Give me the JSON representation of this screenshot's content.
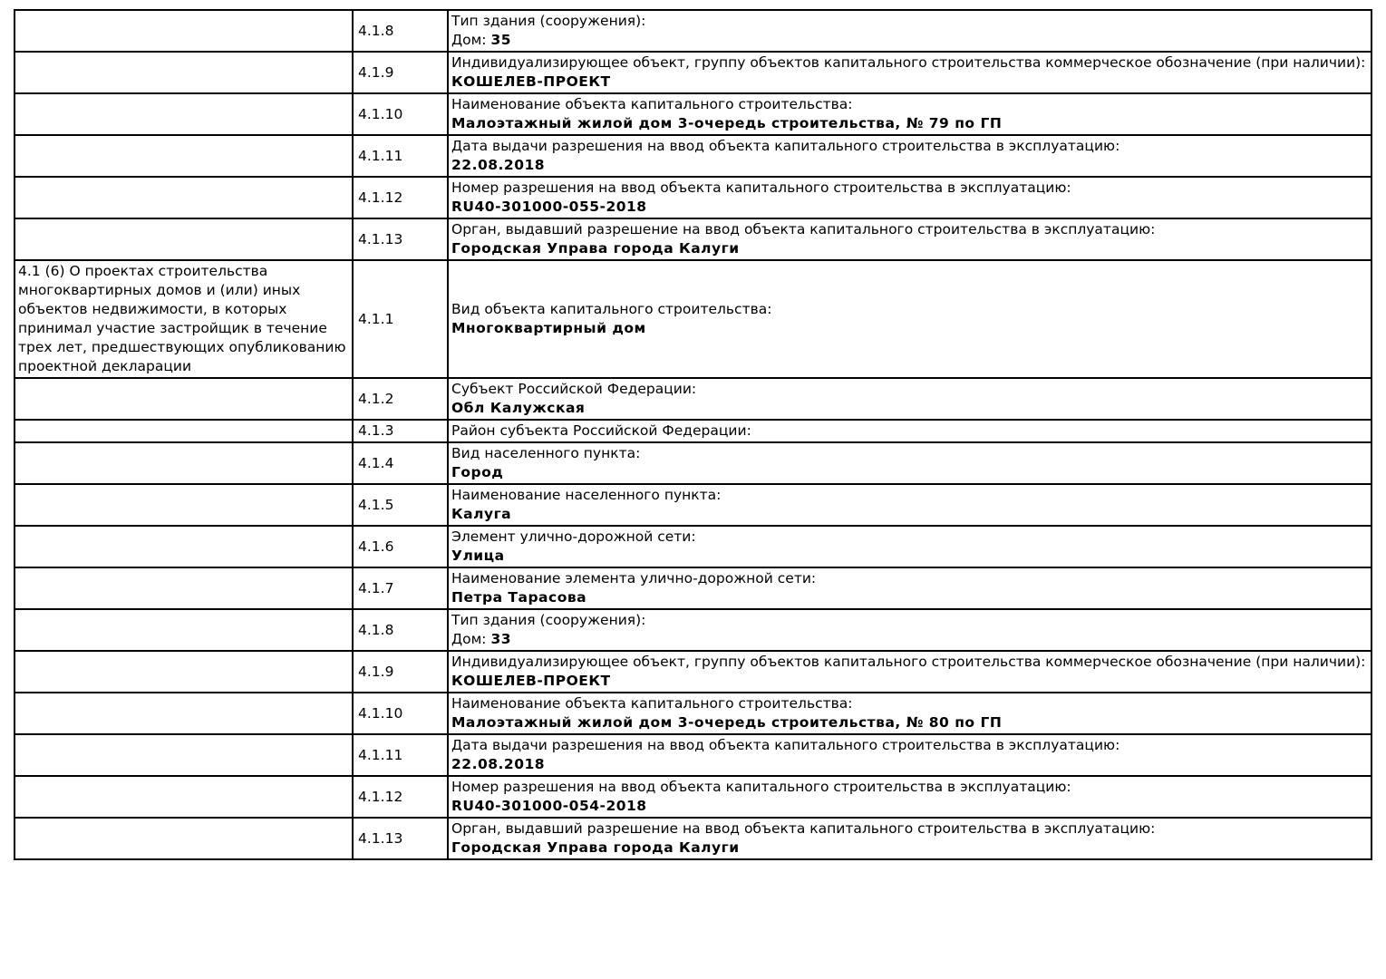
{
  "page": {
    "background_color": "#ffffff",
    "text_color": "#000000",
    "border_color": "#000000"
  },
  "table": {
    "rows": [
      {
        "num": "4.1.8",
        "label": "Тип здания (сооружения):",
        "value_prefix": "Дом: ",
        "value": "35"
      },
      {
        "num": "4.1.9",
        "label": "Индивидуализирующее объект, группу объектов капитального строительства коммерческое обозначение (при наличии):",
        "value": "КОШЕЛЕВ-ПРОЕКТ"
      },
      {
        "num": "4.1.10",
        "label": "Наименование объекта капитального строительства:",
        "value": "Малоэтажный жилой дом 3-очередь строительства, № 79 по ГП"
      },
      {
        "num": "4.1.11",
        "label": "Дата выдачи разрешения на ввод объекта капитального строительства в эксплуатацию:",
        "value": "22.08.2018"
      },
      {
        "num": "4.1.12",
        "label": "Номер разрешения на ввод объекта капитального строительства в эксплуатацию:",
        "value": "RU40-301000-055-2018"
      },
      {
        "num": "4.1.13",
        "label": "Орган, выдавший разрешение на ввод объекта капитального строительства в эксплуатацию:",
        "value": "Городская Управа города Калуги"
      },
      {
        "num": "4.1.1",
        "section": "4.1 (6) О проектах строительства многоквартирных домов и (или) иных объектов недвижимости, в которых принимал участие застройщик в течение трех лет, предшествующих опубликованию проектной декларации",
        "label": "Вид объекта капитального строительства:",
        "value": "Многоквартирный дом"
      },
      {
        "num": "4.1.2",
        "label": "Субъект Российской Федерации:",
        "value": "Обл Калужская"
      },
      {
        "num": "4.1.3",
        "label": "Район субъекта Российской Федерации:"
      },
      {
        "num": "4.1.4",
        "label": "Вид населенного пункта:",
        "value": "Город"
      },
      {
        "num": "4.1.5",
        "label": "Наименование населенного пункта:",
        "value": "Калуга"
      },
      {
        "num": "4.1.6",
        "label": "Элемент улично-дорожной сети:",
        "value": "Улица"
      },
      {
        "num": "4.1.7",
        "label": "Наименование элемента улично-дорожной сети:",
        "value": "Петра Тарасова"
      },
      {
        "num": "4.1.8",
        "label": "Тип здания (сооружения):",
        "value_prefix": "Дом: ",
        "value": "33"
      },
      {
        "num": "4.1.9",
        "label": "Индивидуализирующее объект, группу объектов капитального строительства коммерческое обозначение (при наличии):",
        "value": "КОШЕЛЕВ-ПРОЕКТ"
      },
      {
        "num": "4.1.10",
        "label": "Наименование объекта капитального строительства:",
        "value": "Малоэтажный жилой дом 3-очередь строительства, № 80 по ГП"
      },
      {
        "num": "4.1.11",
        "label": "Дата выдачи разрешения на ввод объекта капитального строительства в эксплуатацию:",
        "value": "22.08.2018"
      },
      {
        "num": "4.1.12",
        "label": "Номер разрешения на ввод объекта капитального строительства в эксплуатацию:",
        "value": "RU40-301000-054-2018"
      },
      {
        "num": "4.1.13",
        "label": "Орган, выдавший разрешение на ввод объекта капитального строительства в эксплуатацию:",
        "value": "Городская Управа города Калуги"
      }
    ]
  }
}
